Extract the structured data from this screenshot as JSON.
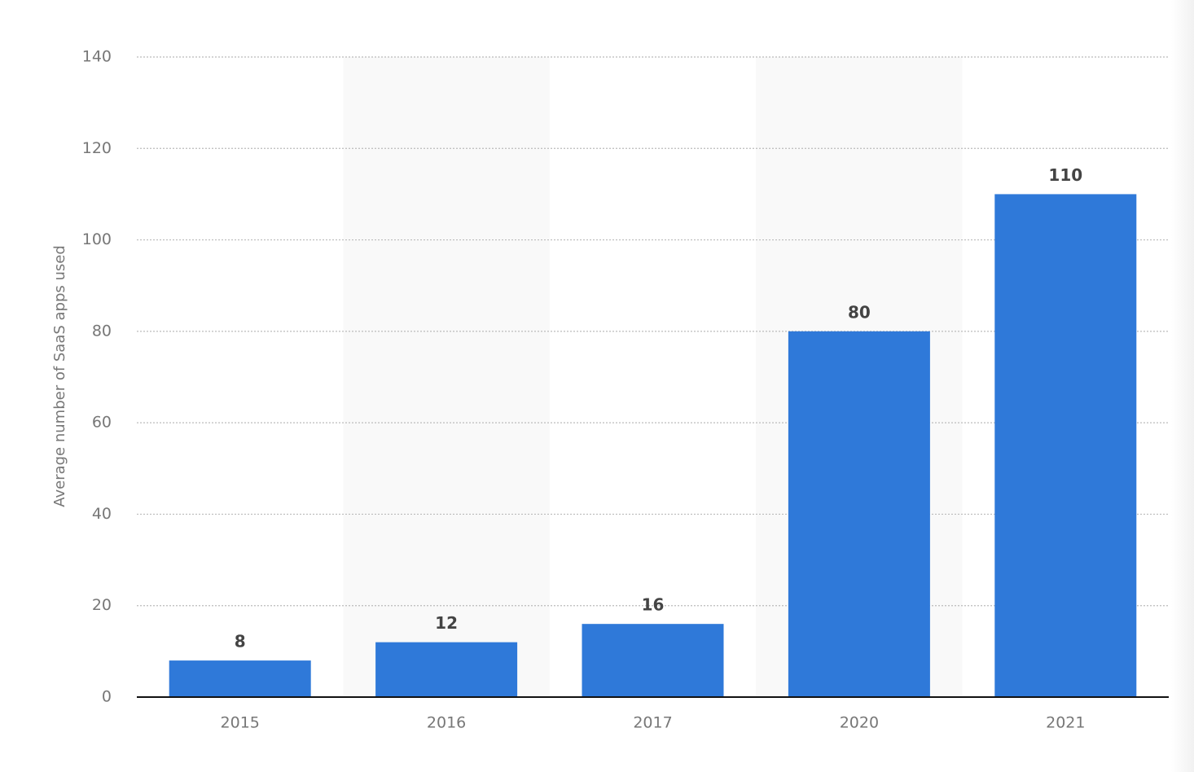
{
  "chart_data": {
    "type": "bar",
    "y_label": "Average number of SaaS apps used",
    "categories": [
      "2015",
      "2016",
      "2017",
      "2020",
      "2021"
    ],
    "values": [
      8,
      12,
      16,
      80,
      110
    ],
    "color": "#2f79d9",
    "ylim": [
      0,
      140
    ],
    "yticks": [
      0,
      20,
      40,
      60,
      80,
      100,
      120,
      140
    ],
    "grid": true
  }
}
